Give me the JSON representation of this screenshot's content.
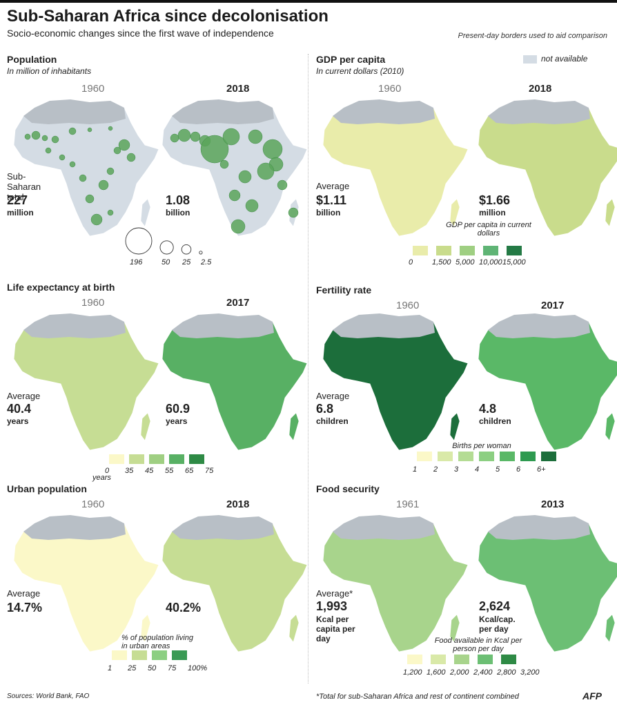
{
  "header": {
    "title": "Sub-Saharan Africa since decolonisation",
    "subtitle": "Socio-economic changes since the first wave of independence",
    "borders_note": "Present-day borders used to aid comparison"
  },
  "not_available": {
    "label": "not available",
    "color": "#d4dce4"
  },
  "colors": {
    "land_na": "#d4dce4",
    "north_africa": "#b8bfc6",
    "bubble": "#5aa55a"
  },
  "icons": {
    "logo": "afp-icon"
  },
  "footer": {
    "sources": "Sources: World Bank, FAO",
    "footnote": "*Total for sub-Saharan Africa and rest of continent combined",
    "afp": "AFP"
  },
  "chart_data": [
    {
      "type": "map",
      "title": "Population",
      "subtitle": "In million of inhabitants",
      "years": [
        "1960",
        "2018"
      ],
      "stat_label": "Sub-Saharan total",
      "stats": [
        {
          "value": "227",
          "unit": "million"
        },
        {
          "value": "1.08",
          "unit": "billion"
        }
      ],
      "bubble_legend": [
        196,
        50,
        25,
        2.5
      ]
    },
    {
      "type": "map",
      "title": "GDP per capita",
      "subtitle": "In current dollars (2010)",
      "years": [
        "1960",
        "2018"
      ],
      "stat_label": "Average",
      "stats": [
        {
          "value": "$1.11",
          "unit": "billion"
        },
        {
          "value": "$1.66",
          "unit": "million"
        }
      ],
      "legend_title": "GDP per capita in current dollars",
      "legend_ticks": [
        "0",
        "1,500",
        "5,000",
        "10,000",
        "15,000"
      ],
      "palette": [
        "#e9ecaa",
        "#c9dc8c",
        "#9fcf82",
        "#5fb475",
        "#247a45"
      ],
      "fill_idx": [
        0,
        1
      ]
    },
    {
      "type": "map",
      "title": "Life expectancy at birth",
      "years": [
        "1960",
        "2017"
      ],
      "stat_label": "Average",
      "stats": [
        {
          "value": "40.4",
          "unit": "years"
        },
        {
          "value": "60.9",
          "unit": "years"
        }
      ],
      "legend_ticks": [
        "0",
        "35",
        "45",
        "55",
        "65",
        "75"
      ],
      "legend_unit": "years",
      "palette": [
        "#fbf8c8",
        "#c6dd94",
        "#9fcf82",
        "#58b064",
        "#2e8a45"
      ],
      "fill_idx": [
        1,
        3
      ]
    },
    {
      "type": "map",
      "title": "Fertility rate",
      "years": [
        "1960",
        "2017"
      ],
      "stat_label": "Average",
      "stats": [
        {
          "value": "6.8",
          "unit": "children"
        },
        {
          "value": "4.8",
          "unit": "children"
        }
      ],
      "legend_title": "Births per woman",
      "legend_ticks": [
        "1",
        "2",
        "3",
        "4",
        "5",
        "6",
        "6+"
      ],
      "palette": [
        "#fbf8c8",
        "#d9e9a8",
        "#b4dc94",
        "#8ccf82",
        "#5ab867",
        "#2e9a50",
        "#1c6e3b"
      ],
      "fill_idx": [
        6,
        4
      ]
    },
    {
      "type": "map",
      "title": "Urban population",
      "years": [
        "1960",
        "2018"
      ],
      "stat_label": "Average",
      "stats": [
        {
          "value": "14.7%",
          "unit": ""
        },
        {
          "value": "40.2%",
          "unit": ""
        }
      ],
      "legend_title": "% of population living in urban areas",
      "legend_ticks": [
        "1",
        "25",
        "50",
        "75",
        "100%"
      ],
      "palette": [
        "#fbf8c8",
        "#c6dd94",
        "#8ccf82",
        "#3a9a55"
      ],
      "fill_idx": [
        0,
        1
      ]
    },
    {
      "type": "map",
      "title": "Food security",
      "years": [
        "1961",
        "2013"
      ],
      "stat_label": "Average*",
      "stats": [
        {
          "value": "1,993",
          "unit": "Kcal per capita per day"
        },
        {
          "value": "2,624",
          "unit": "Kcal/cap. per day"
        }
      ],
      "legend_title": "Food available in Kcal per person per day",
      "legend_ticks": [
        "1,200",
        "1,600",
        "2,000",
        "2,400",
        "2,800",
        "3,200"
      ],
      "palette": [
        "#fbf8c8",
        "#d9e9a8",
        "#a8d48c",
        "#6cbf74",
        "#2e8a45"
      ],
      "fill_idx": [
        2,
        3
      ]
    }
  ]
}
